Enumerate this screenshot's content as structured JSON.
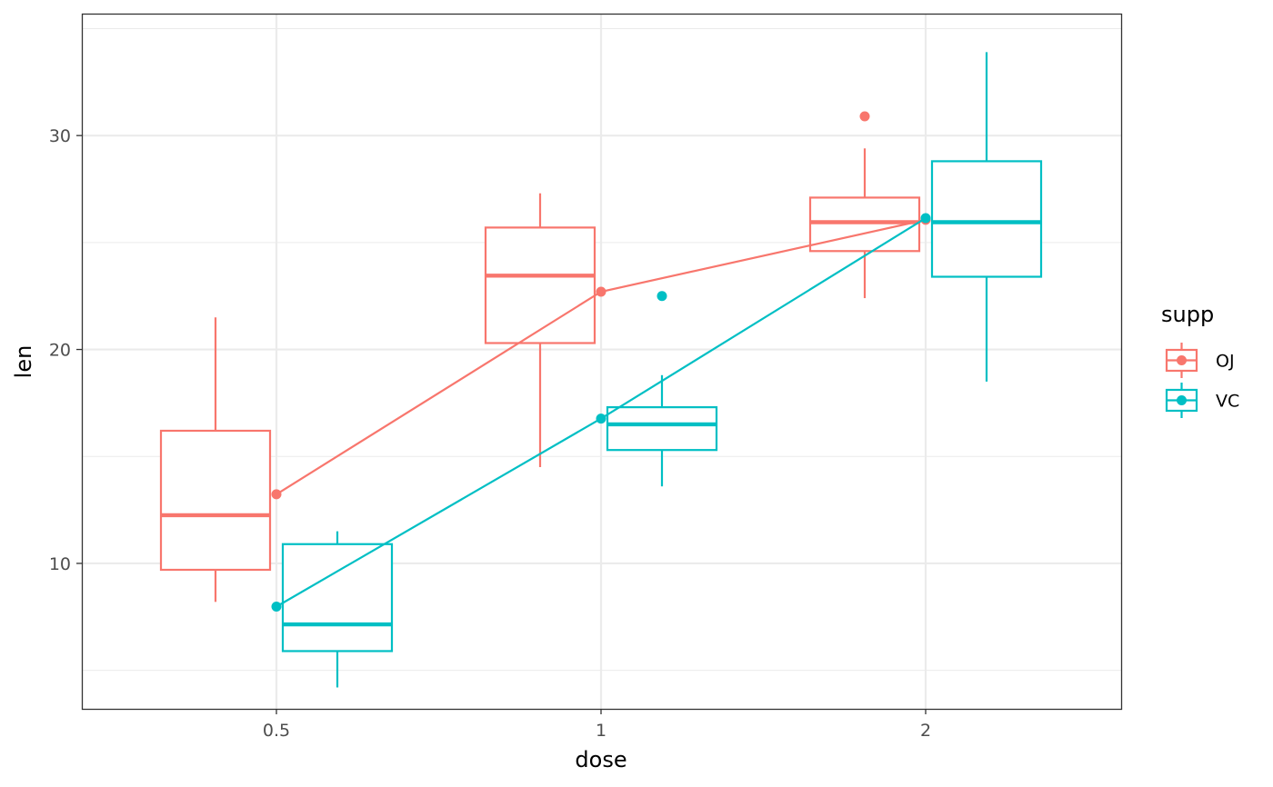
{
  "chart_data": {
    "type": "box",
    "xlabel": "dose",
    "ylabel": "len",
    "categories": [
      "0.5",
      "1",
      "2"
    ],
    "yticks": [
      10,
      20,
      30
    ],
    "ylim": [
      3.2,
      35.7
    ],
    "grid": true,
    "legend": {
      "title": "supp",
      "position": "right",
      "entries": [
        {
          "label": "OJ",
          "color": "#F8766D"
        },
        {
          "label": "VC",
          "color": "#00BFC4"
        }
      ]
    },
    "series": [
      {
        "name": "OJ",
        "color": "#F8766D",
        "boxes": [
          {
            "category": "0.5",
            "lower_whisker": 8.2,
            "q1": 9.7,
            "median": 12.25,
            "q3": 16.2,
            "upper_whisker": 21.5,
            "outliers": []
          },
          {
            "category": "1",
            "lower_whisker": 14.5,
            "q1": 20.3,
            "median": 23.45,
            "q3": 25.7,
            "upper_whisker": 27.3,
            "outliers": []
          },
          {
            "category": "2",
            "lower_whisker": 22.4,
            "q1": 24.6,
            "median": 25.95,
            "q3": 27.1,
            "upper_whisker": 29.4,
            "outliers": [
              30.9
            ]
          }
        ],
        "means": [
          13.23,
          22.7,
          26.06
        ]
      },
      {
        "name": "VC",
        "color": "#00BFC4",
        "boxes": [
          {
            "category": "0.5",
            "lower_whisker": 4.2,
            "q1": 5.9,
            "median": 7.15,
            "q3": 10.9,
            "upper_whisker": 11.5,
            "outliers": []
          },
          {
            "category": "1",
            "lower_whisker": 13.6,
            "q1": 15.3,
            "median": 16.5,
            "q3": 17.3,
            "upper_whisker": 18.8,
            "outliers": [
              22.5
            ]
          },
          {
            "category": "2",
            "lower_whisker": 18.5,
            "q1": 23.4,
            "median": 25.95,
            "q3": 28.8,
            "upper_whisker": 33.9,
            "outliers": []
          }
        ],
        "means": [
          7.98,
          16.77,
          26.14
        ]
      }
    ]
  }
}
